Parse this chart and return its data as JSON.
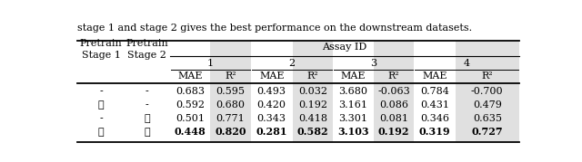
{
  "caption_text": "stage 1 and stage 2 gives the best performance on the downstream datasets.",
  "assay_ids": [
    "1",
    "2",
    "3",
    "4"
  ],
  "sub_headers": [
    "MAE",
    "R²",
    "MAE",
    "R²",
    "MAE",
    "R²",
    "MAE",
    "R²"
  ],
  "rows": [
    [
      "-",
      "-",
      "0.683",
      "0.595",
      "0.493",
      "0.032",
      "3.680",
      "-0.063",
      "0.784",
      "-0.700"
    ],
    [
      "✓",
      "-",
      "0.592",
      "0.680",
      "0.420",
      "0.192",
      "3.161",
      "0.086",
      "0.431",
      "0.479"
    ],
    [
      "-",
      "✓",
      "0.501",
      "0.771",
      "0.343",
      "0.418",
      "3.301",
      "0.081",
      "0.346",
      "0.635"
    ],
    [
      "✓",
      "✓",
      "0.448",
      "0.820",
      "0.281",
      "0.582",
      "3.103",
      "0.192",
      "0.319",
      "0.727"
    ]
  ],
  "bold_row": 3,
  "shade_color": "#e0e0e0",
  "background_color": "#ffffff",
  "font_size": 8.0,
  "col_starts": [
    0.01,
    0.115,
    0.215,
    0.305,
    0.395,
    0.487,
    0.577,
    0.667,
    0.757,
    0.848,
    0.99
  ]
}
